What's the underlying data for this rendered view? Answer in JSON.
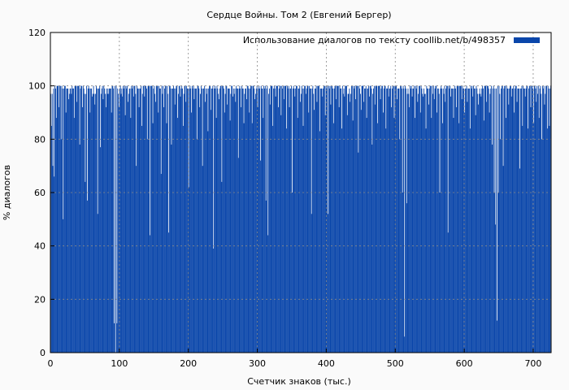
{
  "chart_data": {
    "type": "bar",
    "title": "Сердце Войны. Том 2 (Евгений Бергер)",
    "xlabel": "Счетчик знаков (тыс.)",
    "ylabel": "% диалогов",
    "xlim": [
      0,
      726
    ],
    "ylim": [
      0,
      120
    ],
    "x_ticks": [
      0,
      100,
      200,
      300,
      400,
      500,
      600,
      700
    ],
    "y_ticks": [
      0,
      20,
      40,
      60,
      80,
      100,
      120
    ],
    "grid": true,
    "legend_position": "top-right",
    "series": [
      {
        "name": "Использование диалогов по тексту  coollib.net/b/498357",
        "color": "#0a46aa",
        "baseline": 99,
        "dips": [
          [
            1,
            85
          ],
          [
            3,
            70
          ],
          [
            5,
            66
          ],
          [
            8,
            88
          ],
          [
            12,
            92
          ],
          [
            15,
            80
          ],
          [
            18,
            50
          ],
          [
            22,
            90
          ],
          [
            26,
            95
          ],
          [
            30,
            97
          ],
          [
            34,
            88
          ],
          [
            38,
            94
          ],
          [
            42,
            78
          ],
          [
            46,
            92
          ],
          [
            50,
            64
          ],
          [
            53,
            57
          ],
          [
            57,
            90
          ],
          [
            60,
            96
          ],
          [
            64,
            93
          ],
          [
            68,
            52
          ],
          [
            72,
            77
          ],
          [
            76,
            95
          ],
          [
            80,
            92
          ],
          [
            84,
            97
          ],
          [
            88,
            90
          ],
          [
            92,
            11
          ],
          [
            94,
            0
          ],
          [
            96,
            11
          ],
          [
            99,
            92
          ],
          [
            104,
            96
          ],
          [
            108,
            89
          ],
          [
            112,
            94
          ],
          [
            116,
            88
          ],
          [
            120,
            96
          ],
          [
            124,
            70
          ],
          [
            128,
            92
          ],
          [
            132,
            85
          ],
          [
            136,
            96
          ],
          [
            140,
            80
          ],
          [
            144,
            44
          ],
          [
            148,
            86
          ],
          [
            152,
            94
          ],
          [
            156,
            90
          ],
          [
            160,
            67
          ],
          [
            164,
            92
          ],
          [
            168,
            86
          ],
          [
            171,
            45
          ],
          [
            175,
            78
          ],
          [
            180,
            93
          ],
          [
            184,
            88
          ],
          [
            188,
            96
          ],
          [
            192,
            85
          ],
          [
            196,
            94
          ],
          [
            200,
            62
          ],
          [
            204,
            90
          ],
          [
            208,
            95
          ],
          [
            212,
            80
          ],
          [
            216,
            92
          ],
          [
            220,
            70
          ],
          [
            224,
            94
          ],
          [
            228,
            83
          ],
          [
            232,
            91
          ],
          [
            236,
            39
          ],
          [
            240,
            88
          ],
          [
            244,
            95
          ],
          [
            248,
            64
          ],
          [
            252,
            90
          ],
          [
            256,
            93
          ],
          [
            260,
            87
          ],
          [
            264,
            96
          ],
          [
            268,
            94
          ],
          [
            272,
            73
          ],
          [
            276,
            92
          ],
          [
            280,
            86
          ],
          [
            284,
            95
          ],
          [
            288,
            90
          ],
          [
            292,
            86
          ],
          [
            296,
            95
          ],
          [
            300,
            92
          ],
          [
            304,
            72
          ],
          [
            308,
            88
          ],
          [
            312,
            57
          ],
          [
            315,
            44
          ],
          [
            318,
            93
          ],
          [
            322,
            85
          ],
          [
            326,
            96
          ],
          [
            330,
            92
          ],
          [
            334,
            89
          ],
          [
            338,
            95
          ],
          [
            342,
            84
          ],
          [
            346,
            92
          ],
          [
            350,
            60
          ],
          [
            354,
            96
          ],
          [
            358,
            88
          ],
          [
            362,
            94
          ],
          [
            366,
            85
          ],
          [
            370,
            97
          ],
          [
            374,
            90
          ],
          [
            378,
            52
          ],
          [
            382,
            91
          ],
          [
            386,
            94
          ],
          [
            390,
            83
          ],
          [
            394,
            96
          ],
          [
            398,
            89
          ],
          [
            402,
            52
          ],
          [
            406,
            93
          ],
          [
            410,
            86
          ],
          [
            414,
            95
          ],
          [
            418,
            92
          ],
          [
            422,
            84
          ],
          [
            426,
            96
          ],
          [
            430,
            89
          ],
          [
            434,
            94
          ],
          [
            438,
            87
          ],
          [
            442,
            95
          ],
          [
            446,
            75
          ],
          [
            450,
            91
          ],
          [
            454,
            94
          ],
          [
            458,
            88
          ],
          [
            462,
            96
          ],
          [
            466,
            78
          ],
          [
            470,
            93
          ],
          [
            474,
            86
          ],
          [
            478,
            95
          ],
          [
            482,
            90
          ],
          [
            486,
            84
          ],
          [
            490,
            96
          ],
          [
            494,
            92
          ],
          [
            498,
            88
          ],
          [
            502,
            95
          ],
          [
            506,
            80
          ],
          [
            510,
            60
          ],
          [
            513,
            6
          ],
          [
            516,
            56
          ],
          [
            520,
            92
          ],
          [
            524,
            96
          ],
          [
            528,
            88
          ],
          [
            532,
            94
          ],
          [
            536,
            90
          ],
          [
            540,
            96
          ],
          [
            544,
            84
          ],
          [
            548,
            93
          ],
          [
            552,
            88
          ],
          [
            556,
            95
          ],
          [
            560,
            90
          ],
          [
            564,
            60
          ],
          [
            568,
            86
          ],
          [
            572,
            94
          ],
          [
            576,
            45
          ],
          [
            580,
            96
          ],
          [
            584,
            88
          ],
          [
            588,
            92
          ],
          [
            592,
            86
          ],
          [
            596,
            95
          ],
          [
            600,
            90
          ],
          [
            604,
            94
          ],
          [
            608,
            84
          ],
          [
            612,
            96
          ],
          [
            616,
            89
          ],
          [
            620,
            93
          ],
          [
            624,
            96
          ],
          [
            628,
            87
          ],
          [
            632,
            94
          ],
          [
            636,
            90
          ],
          [
            640,
            78
          ],
          [
            643,
            60
          ],
          [
            645,
            48
          ],
          [
            647,
            12
          ],
          [
            649,
            60
          ],
          [
            652,
            80
          ],
          [
            656,
            70
          ],
          [
            660,
            88
          ],
          [
            664,
            93
          ],
          [
            668,
            96
          ],
          [
            672,
            90
          ],
          [
            676,
            94
          ],
          [
            680,
            69
          ],
          [
            684,
            85
          ],
          [
            688,
            96
          ],
          [
            692,
            84
          ],
          [
            696,
            92
          ],
          [
            700,
            86
          ],
          [
            704,
            94
          ],
          [
            708,
            88
          ],
          [
            712,
            80
          ],
          [
            716,
            93
          ],
          [
            720,
            84
          ],
          [
            723,
            85
          ]
        ]
      }
    ]
  }
}
